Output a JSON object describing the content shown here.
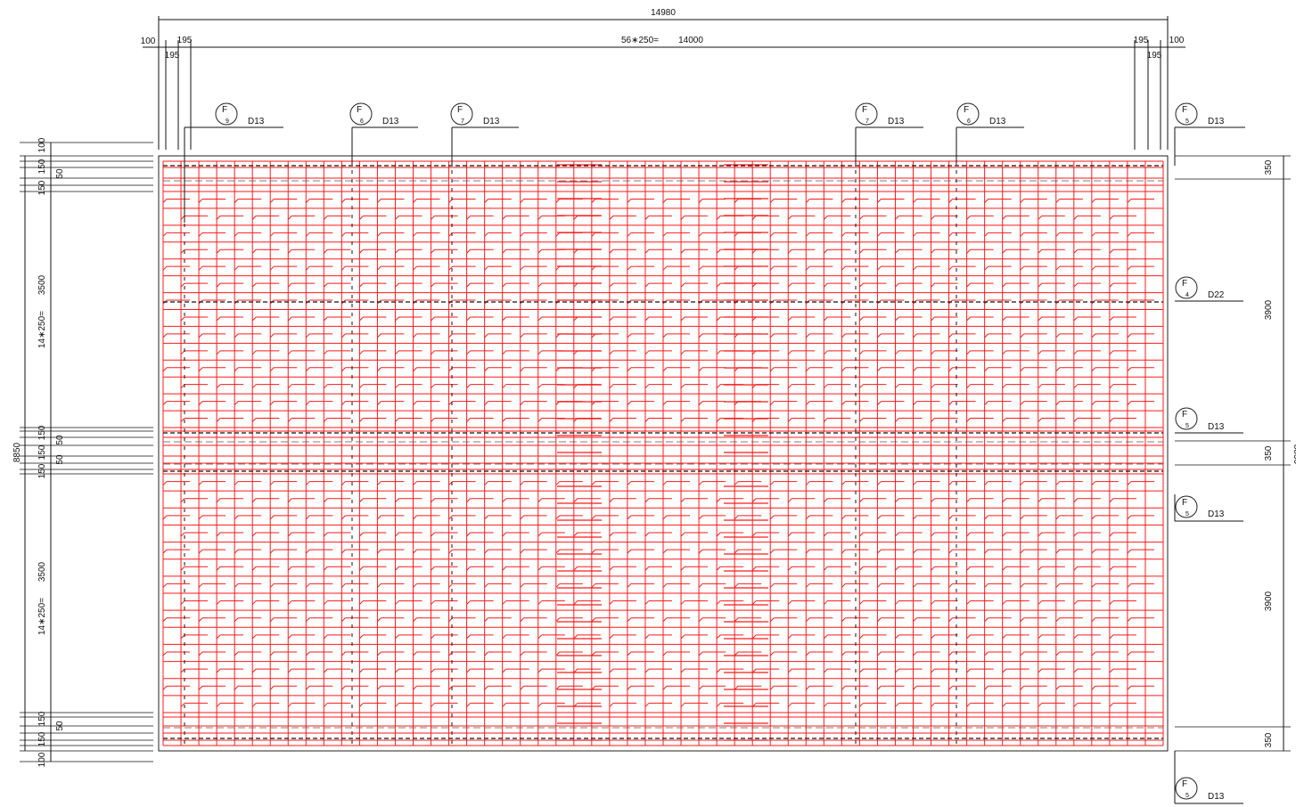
{
  "dimensions": {
    "overall_width": "14980",
    "left_edge": "100",
    "left_offset_top": "195",
    "left_offset_bottom": "195",
    "bay_span": "56∗250=",
    "bay_total": "14000",
    "right_offset_top": "195",
    "right_edge": "100",
    "right_offset_bottom": "195",
    "overall_height": "8850",
    "left_stack": {
      "top_edge": "100",
      "a": "150",
      "b": "50",
      "c": "150",
      "panel_1": "3500",
      "spacing_1": "14∗250=",
      "d": "150",
      "e": "50",
      "f": "150",
      "g": "50",
      "h": "150",
      "panel_2": "3500",
      "spacing_2": "14∗250=",
      "i": "150",
      "j": "50",
      "k": "150",
      "bottom_edge": "100"
    },
    "right_stack": {
      "band_top": "350",
      "panel_1": "3900",
      "band_mid": "350",
      "panel_2": "3900",
      "band_bottom": "350",
      "overall_cut": "8850"
    }
  },
  "bar_tags": [
    {
      "letter": "F",
      "num": "9",
      "dia": "D13"
    },
    {
      "letter": "F",
      "num": "6",
      "dia": "D13"
    },
    {
      "letter": "F",
      "num": "7",
      "dia": "D13"
    },
    {
      "letter": "F",
      "num": "7",
      "dia": "D13"
    },
    {
      "letter": "F",
      "num": "6",
      "dia": "D13"
    },
    {
      "letter": "F",
      "num": "5",
      "dia": "D13"
    },
    {
      "letter": "F",
      "num": "4",
      "dia": "D22"
    },
    {
      "letter": "F",
      "num": "5",
      "dia": "D13"
    },
    {
      "letter": "F",
      "num": "5",
      "dia": "D13"
    },
    {
      "letter": "F",
      "num": "5",
      "dia": "D13"
    }
  ],
  "colors": {
    "rebar": "#ff1a1a",
    "line": "#111111",
    "background": "#ffffff"
  }
}
